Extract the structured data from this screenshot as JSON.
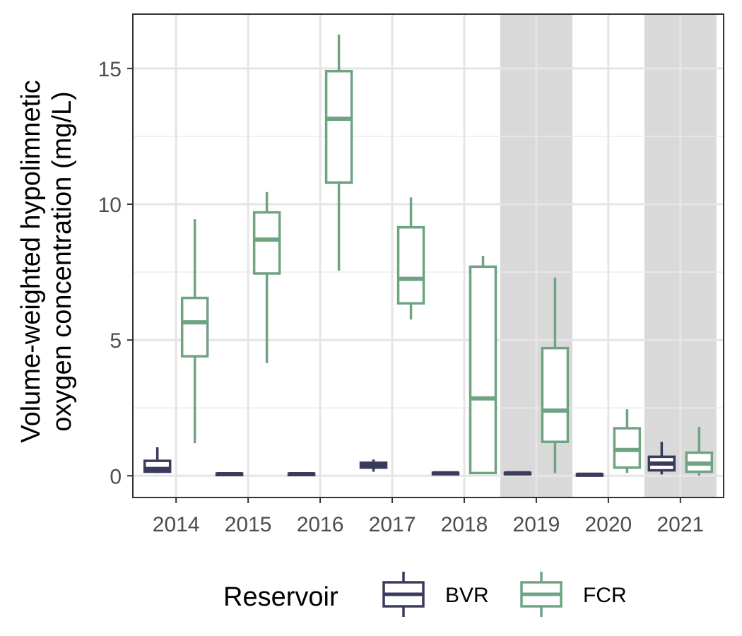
{
  "chart_data": {
    "type": "boxplot",
    "ylabel_lines": [
      "Volume-weighted hypolimnetic",
      "oxygen concentration (mg/L)"
    ],
    "xlabel": "",
    "categories": [
      "2014",
      "2015",
      "2016",
      "2017",
      "2018",
      "2019",
      "2020",
      "2021"
    ],
    "ylim": [
      -0.8,
      17.0
    ],
    "yticks": [
      0,
      5,
      10,
      15
    ],
    "grid": true,
    "shaded_categories": [
      "2019",
      "2021"
    ],
    "shade_color": "#d9d9d9",
    "legend": {
      "title": "Reservoir",
      "position": "bottom"
    },
    "series": [
      {
        "name": "BVR",
        "color": "#3a3a5c",
        "boxes": [
          {
            "min": 0.1,
            "q1": 0.15,
            "median": 0.25,
            "q3": 0.55,
            "max": 1.05
          },
          {
            "min": 0.02,
            "q1": 0.04,
            "median": 0.06,
            "q3": 0.08,
            "max": 0.1
          },
          {
            "min": 0.02,
            "q1": 0.04,
            "median": 0.06,
            "q3": 0.08,
            "max": 0.1
          },
          {
            "min": 0.15,
            "q1": 0.3,
            "median": 0.4,
            "q3": 0.48,
            "max": 0.6
          },
          {
            "min": 0.05,
            "q1": 0.07,
            "median": 0.09,
            "q3": 0.11,
            "max": 0.13
          },
          {
            "min": 0.05,
            "q1": 0.07,
            "median": 0.09,
            "q3": 0.11,
            "max": 0.13
          },
          {
            "min": 0.0,
            "q1": 0.02,
            "median": 0.04,
            "q3": 0.06,
            "max": 0.08
          },
          {
            "min": 0.05,
            "q1": 0.2,
            "median": 0.45,
            "q3": 0.7,
            "max": 1.25
          }
        ]
      },
      {
        "name": "FCR",
        "color": "#6fa382",
        "boxes": [
          {
            "min": 1.2,
            "q1": 4.4,
            "median": 5.65,
            "q3": 6.55,
            "max": 9.45
          },
          {
            "min": 4.15,
            "q1": 7.45,
            "median": 8.7,
            "q3": 9.7,
            "max": 10.45
          },
          {
            "min": 7.55,
            "q1": 10.8,
            "median": 13.15,
            "q3": 14.9,
            "max": 16.25
          },
          {
            "min": 5.75,
            "q1": 6.35,
            "median": 7.25,
            "q3": 9.15,
            "max": 10.25
          },
          {
            "min": 0.08,
            "q1": 0.1,
            "median": 2.85,
            "q3": 7.7,
            "max": 8.1
          },
          {
            "min": 0.1,
            "q1": 1.25,
            "median": 2.4,
            "q3": 4.7,
            "max": 7.3
          },
          {
            "min": 0.1,
            "q1": 0.3,
            "median": 0.95,
            "q3": 1.75,
            "max": 2.45
          },
          {
            "min": 0.0,
            "q1": 0.15,
            "median": 0.45,
            "q3": 0.85,
            "max": 1.8
          }
        ]
      }
    ]
  }
}
